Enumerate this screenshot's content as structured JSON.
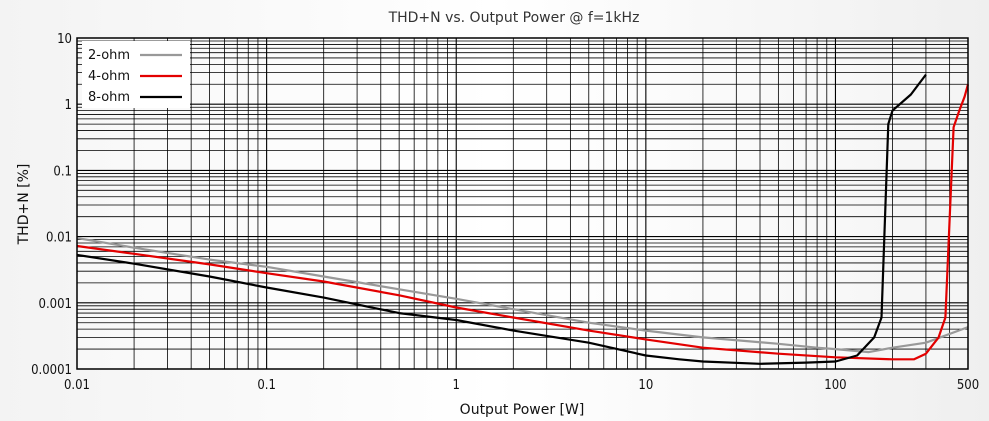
{
  "chart_data": {
    "type": "line",
    "title": "THD+N vs. Output Power @ f=1kHz",
    "xlabel": "Output Power [W]",
    "ylabel": "THD+N [%]",
    "x_scale": "log",
    "y_scale": "log",
    "xlim": [
      0.01,
      500
    ],
    "ylim": [
      0.0001,
      10
    ],
    "x_ticks": [
      0.01,
      0.1,
      1,
      10,
      100,
      500
    ],
    "x_tick_labels": [
      "0.01",
      "0.1",
      "1",
      "10",
      "100",
      "500"
    ],
    "y_ticks": [
      0.0001,
      0.001,
      0.01,
      0.1,
      1,
      10
    ],
    "y_tick_labels": [
      "0.0001",
      "0.001",
      "0.01",
      "0.1",
      "1",
      "10"
    ],
    "grid": true,
    "legend_position": "top-left",
    "series": [
      {
        "name": "2-ohm",
        "color": "#999999",
        "points": [
          [
            0.01,
            0.0095
          ],
          [
            0.02,
            0.0068
          ],
          [
            0.05,
            0.0045
          ],
          [
            0.1,
            0.0035
          ],
          [
            0.2,
            0.0025
          ],
          [
            0.5,
            0.0016
          ],
          [
            1,
            0.00115
          ],
          [
            2,
            0.0008
          ],
          [
            5,
            0.0005
          ],
          [
            10,
            0.00038
          ],
          [
            20,
            0.0003
          ],
          [
            50,
            0.00024
          ],
          [
            80,
            0.00021
          ],
          [
            100,
            0.0002
          ],
          [
            150,
            0.00018
          ],
          [
            200,
            0.00021
          ],
          [
            300,
            0.00025
          ],
          [
            500,
            0.00043
          ]
        ]
      },
      {
        "name": "4-ohm",
        "color": "#e30000",
        "points": [
          [
            0.01,
            0.0072
          ],
          [
            0.02,
            0.0055
          ],
          [
            0.05,
            0.0038
          ],
          [
            0.1,
            0.0028
          ],
          [
            0.2,
            0.0021
          ],
          [
            0.5,
            0.0013
          ],
          [
            1,
            0.00085
          ],
          [
            2,
            0.0006
          ],
          [
            5,
            0.00038
          ],
          [
            10,
            0.00028
          ],
          [
            20,
            0.00021
          ],
          [
            50,
            0.00017
          ],
          [
            100,
            0.00015
          ],
          [
            200,
            0.00014
          ],
          [
            260,
            0.00014
          ],
          [
            300,
            0.00017
          ],
          [
            350,
            0.0003
          ],
          [
            380,
            0.0006
          ],
          [
            420,
            0.45
          ],
          [
            450,
            0.8
          ],
          [
            480,
            1.3
          ],
          [
            500,
            2.0
          ]
        ]
      },
      {
        "name": "8-ohm",
        "color": "#000000",
        "points": [
          [
            0.01,
            0.0053
          ],
          [
            0.02,
            0.0039
          ],
          [
            0.05,
            0.0025
          ],
          [
            0.1,
            0.0017
          ],
          [
            0.2,
            0.0012
          ],
          [
            0.5,
            0.0007
          ],
          [
            1,
            0.00055
          ],
          [
            2,
            0.00038
          ],
          [
            5,
            0.00025
          ],
          [
            10,
            0.00016
          ],
          [
            15,
            0.00014
          ],
          [
            20,
            0.00013
          ],
          [
            40,
            0.00012
          ],
          [
            70,
            0.000125
          ],
          [
            100,
            0.00013
          ],
          [
            130,
            0.00016
          ],
          [
            160,
            0.0003
          ],
          [
            175,
            0.0006
          ],
          [
            190,
            0.5
          ],
          [
            200,
            0.8
          ],
          [
            250,
            1.4
          ],
          [
            300,
            2.8
          ]
        ]
      }
    ]
  }
}
